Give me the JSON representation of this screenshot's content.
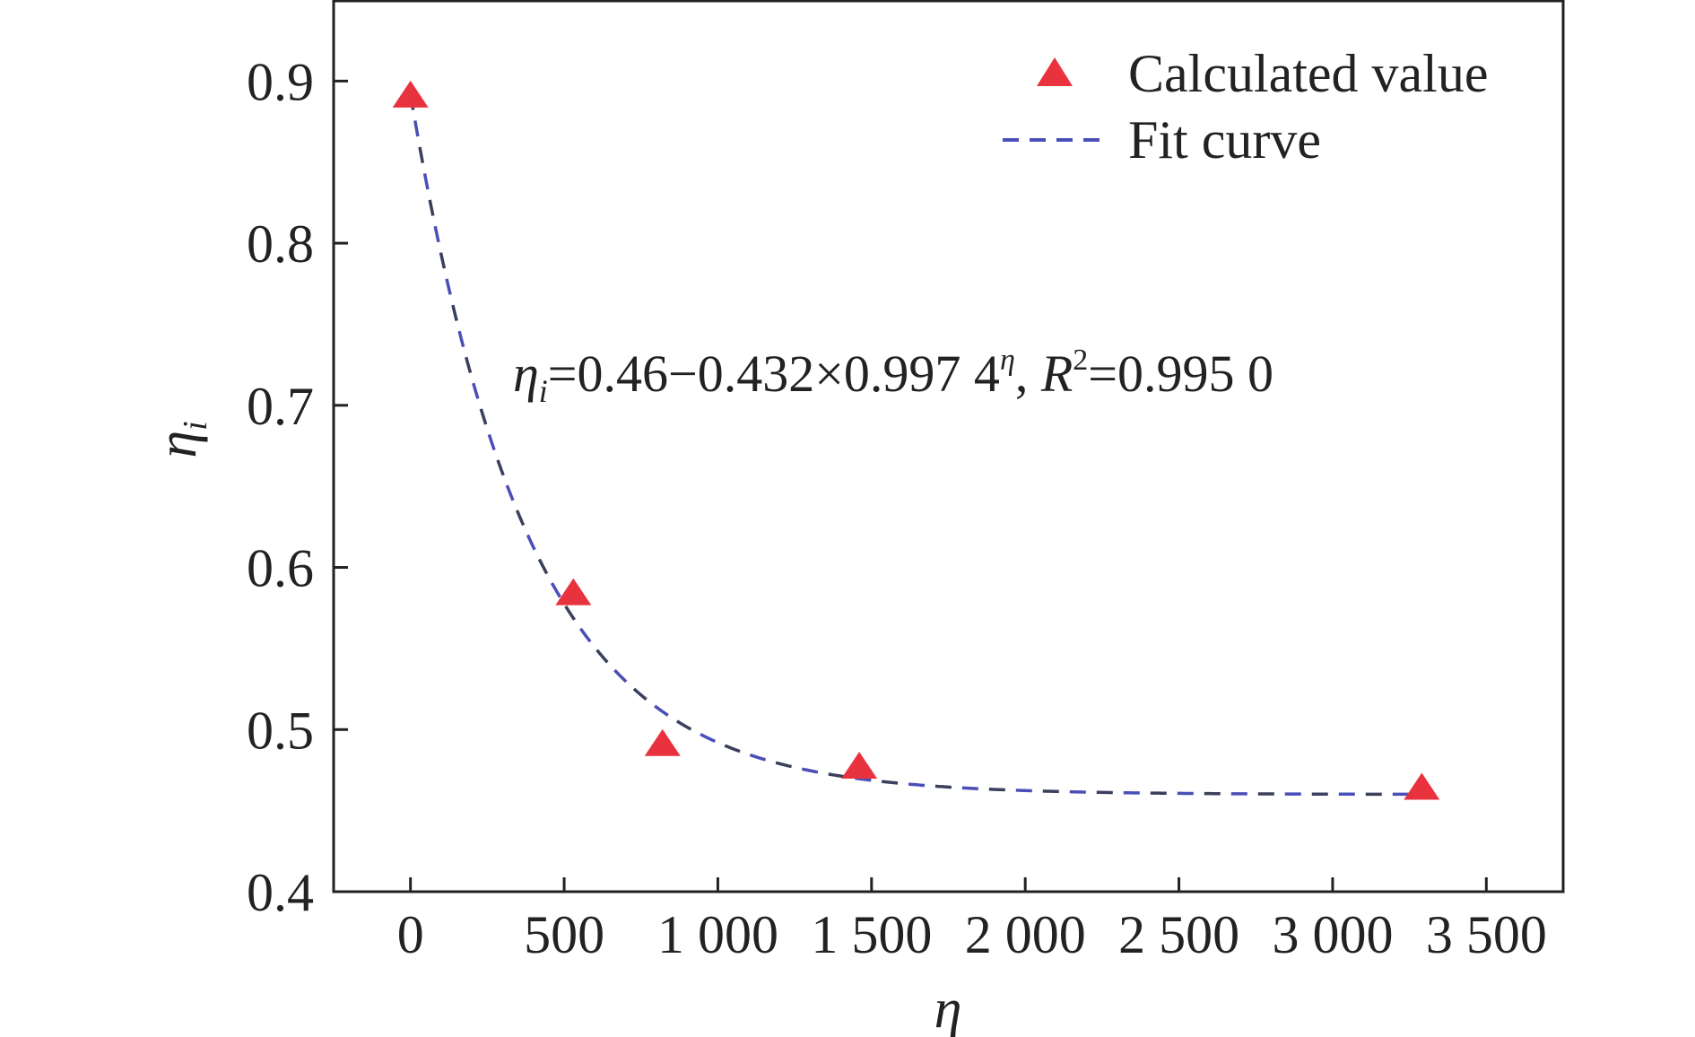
{
  "chart_data": {
    "type": "scatter",
    "xlabel": "η",
    "ylabel": "η",
    "ylabel_sub": "i",
    "xlim": [
      -250,
      3750
    ],
    "ylim": [
      0.4,
      0.95
    ],
    "xticks": [
      0,
      500,
      1000,
      1500,
      2000,
      2500,
      3000,
      3500
    ],
    "xtick_labels": [
      "0",
      "500",
      "1 000",
      "1 500",
      "2 000",
      "2 500",
      "3 000",
      "3 500"
    ],
    "yticks": [
      0.4,
      0.5,
      0.6,
      0.7,
      0.8,
      0.9
    ],
    "ytick_labels": [
      "0.4",
      "0.5",
      "0.6",
      "0.7",
      "0.8",
      "0.9"
    ],
    "grid": false,
    "legend_position": "top-right",
    "series": [
      {
        "name": "Calculated value",
        "kind": "points",
        "marker": "triangle",
        "color": "#e8333f",
        "x": [
          0,
          530,
          820,
          1460,
          3290
        ],
        "y": [
          0.89,
          0.583,
          0.49,
          0.476,
          0.463
        ]
      },
      {
        "name": "Fit curve",
        "kind": "dashed-line",
        "colors": [
          "#3a3f5c",
          "#4a4fb8"
        ],
        "model": {
          "a": 0.46,
          "b": 0.432,
          "base": 0.9974
        },
        "x_range": [
          0,
          3290
        ]
      }
    ],
    "annotation": {
      "lhs": "η",
      "lhs_sub": "i",
      "eq_part1": "=0.46−0.432×0.997 4",
      "eq_sup": "η",
      "eq_part2": ", ",
      "r_symbol": "R",
      "r_sup": "2",
      "r_value": "=0.995 0"
    }
  }
}
